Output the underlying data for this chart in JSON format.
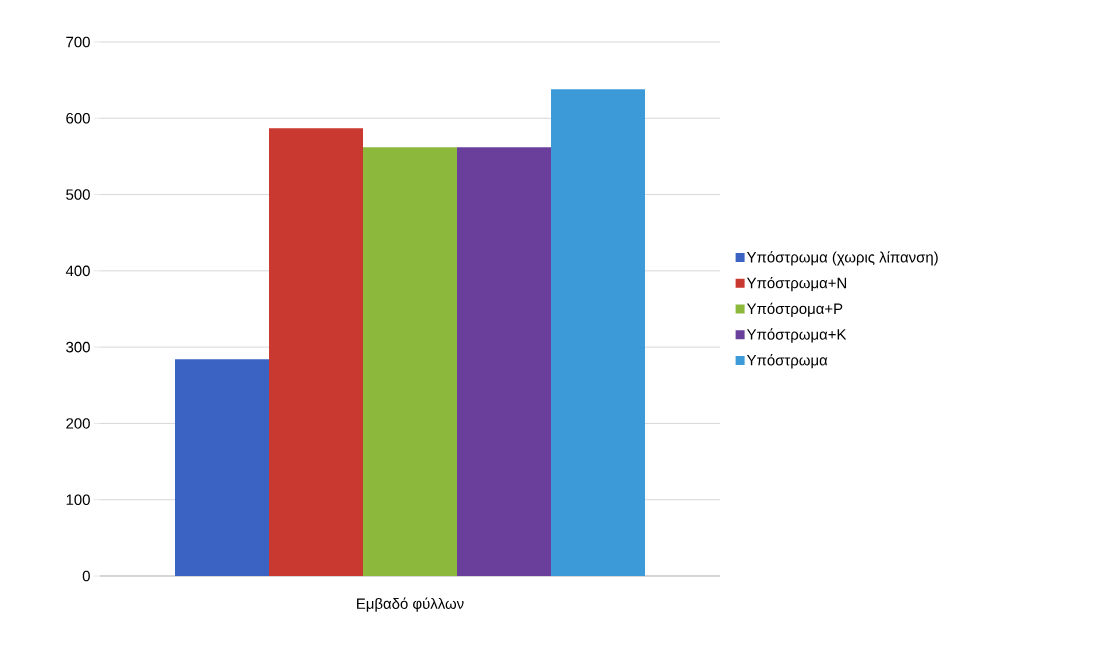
{
  "chart_data": {
    "type": "bar",
    "categories": [
      "Εμβαδό φύλλων"
    ],
    "series": [
      {
        "name": "Υπόστρωμα (χωρις λίπανση)",
        "color": "#3b63c4",
        "values": [
          284
        ]
      },
      {
        "name": "Υπόστρωμα+N",
        "color": "#c9392f",
        "values": [
          587
        ]
      },
      {
        "name": "Υπόστρομα+P",
        "color": "#8cb83c",
        "values": [
          562
        ]
      },
      {
        "name": "Υπόστρωμα+K",
        "color": "#6a3f9c",
        "values": [
          562
        ]
      },
      {
        "name": "Υπόστρωμα",
        "color": "#3d9ad8",
        "values": [
          638
        ]
      }
    ],
    "ylim": [
      0,
      700
    ],
    "yticks": [
      0,
      100,
      200,
      300,
      400,
      500,
      600,
      700
    ],
    "grid": "y",
    "legend": "right"
  }
}
